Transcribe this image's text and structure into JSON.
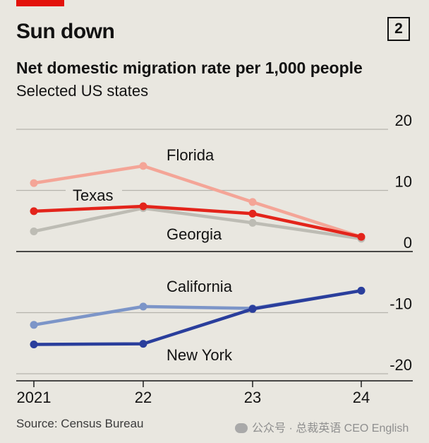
{
  "header": {
    "title": "Sun down",
    "badge": "2"
  },
  "source": "Source: Census Bureau",
  "watermark": "公众号 · 总裁英语 CEO English",
  "colors": {
    "Florida": "#f4a597",
    "Texas": "#e3241b",
    "Georgia": "#bdbcb4",
    "California": "#7c95c8",
    "New York": "#2a3e9c"
  },
  "chart_data": {
    "type": "line",
    "title": "Net domestic migration rate per 1,000 people",
    "subtitle": "Selected US states",
    "x": [
      "2021",
      "22",
      "23",
      "24"
    ],
    "ylim": [
      -21,
      21
    ],
    "yticks": [
      20,
      10,
      0,
      -10,
      -20
    ],
    "ytick_labels": [
      "20",
      "10",
      "0",
      "-10",
      "-20"
    ],
    "grid": true,
    "series": [
      {
        "name": "Florida",
        "values": [
          11.2,
          14.0,
          8.1,
          2.4
        ]
      },
      {
        "name": "Georgia",
        "values": [
          3.3,
          7.1,
          4.7,
          2.1
        ]
      },
      {
        "name": "Texas",
        "values": [
          6.6,
          7.4,
          6.2,
          2.4
        ]
      },
      {
        "name": "California",
        "values": [
          -12.0,
          -9.0,
          -9.3,
          -6.4
        ]
      },
      {
        "name": "New York",
        "values": [
          -15.2,
          -15.1,
          -9.4,
          -6.4
        ]
      }
    ]
  }
}
